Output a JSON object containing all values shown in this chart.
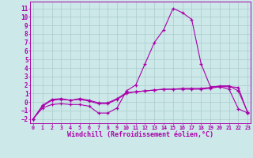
{
  "background_color": "#cce8e8",
  "grid_color": "#aacccc",
  "line_color": "#aa00aa",
  "marker": "+",
  "xlabel": "Windchill (Refroidissement éolien,°C)",
  "xlabel_fontsize": 6.0,
  "ytick_fontsize": 5.5,
  "xtick_fontsize": 4.8,
  "yticks": [
    -2,
    -1,
    0,
    1,
    2,
    3,
    4,
    5,
    6,
    7,
    8,
    9,
    10,
    11
  ],
  "xticks": [
    0,
    1,
    2,
    3,
    4,
    5,
    6,
    7,
    8,
    9,
    10,
    11,
    12,
    13,
    14,
    15,
    16,
    17,
    18,
    19,
    20,
    21,
    22,
    23
  ],
  "xlim": [
    -0.3,
    23.3
  ],
  "ylim": [
    -2.5,
    11.8
  ],
  "line1": [
    -2.0,
    -0.7,
    -0.3,
    -0.2,
    -0.3,
    -0.3,
    -0.5,
    -1.3,
    -1.3,
    -0.7,
    1.3,
    2.0,
    4.5,
    7.0,
    8.5,
    11.0,
    10.5,
    9.7,
    4.5,
    1.8,
    1.8,
    1.5,
    -0.8,
    -1.3
  ],
  "line2": [
    -2.0,
    -0.5,
    0.2,
    0.3,
    0.2,
    0.3,
    0.1,
    -0.2,
    -0.2,
    0.3,
    1.0,
    1.2,
    1.3,
    1.4,
    1.5,
    1.5,
    1.5,
    1.5,
    1.5,
    1.6,
    1.8,
    1.8,
    1.7,
    -1.3
  ],
  "line3": [
    -2.0,
    -0.4,
    0.3,
    0.4,
    0.2,
    0.4,
    0.2,
    -0.1,
    -0.1,
    0.4,
    1.1,
    1.2,
    1.3,
    1.4,
    1.5,
    1.5,
    1.6,
    1.6,
    1.6,
    1.7,
    1.9,
    1.9,
    1.3,
    -1.2
  ]
}
